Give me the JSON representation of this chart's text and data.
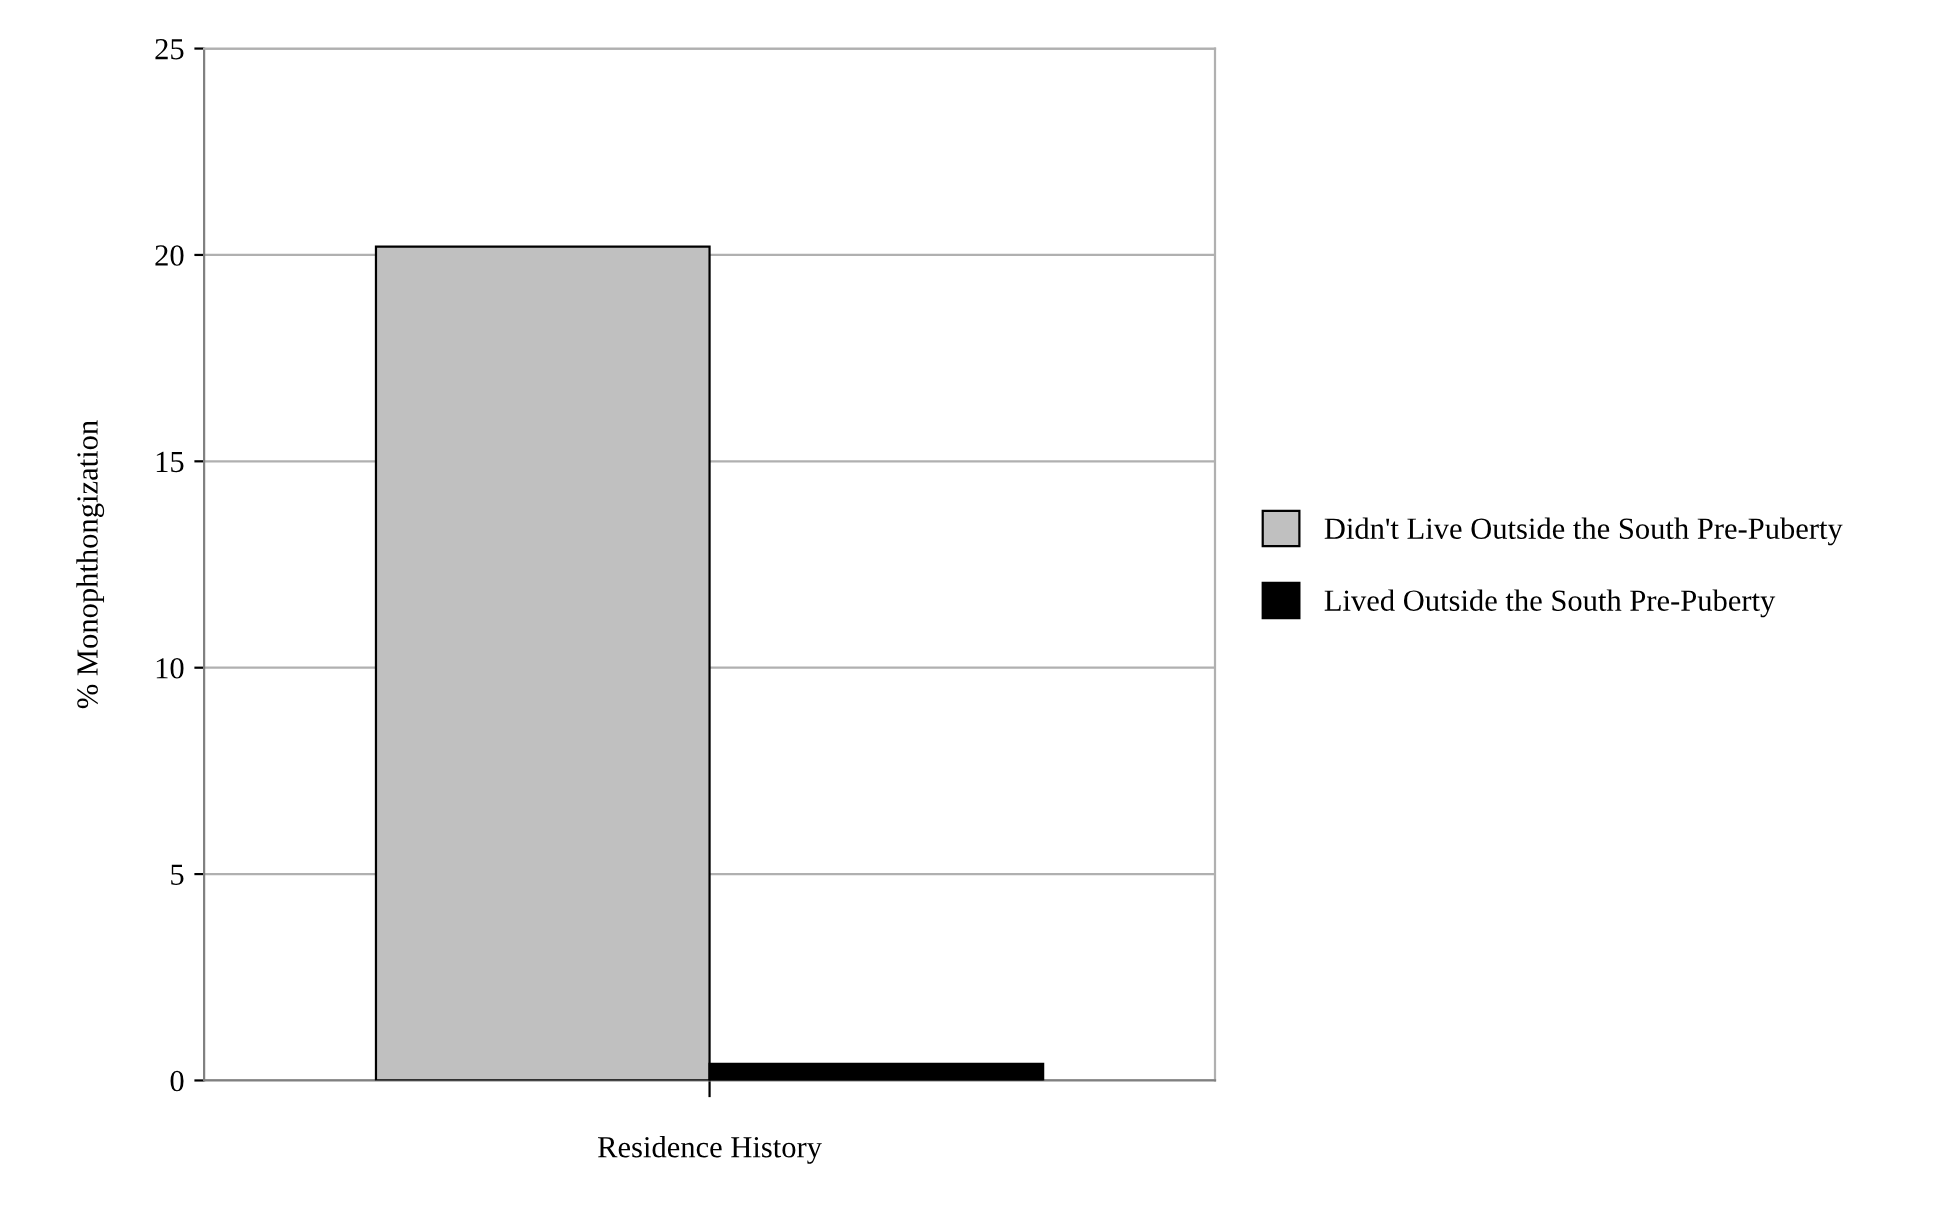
{
  "chart_data": {
    "type": "bar",
    "xlabel": "Residence History",
    "ylabel": "% Monophthongization",
    "categories": [
      null
    ],
    "series": [
      {
        "name": "Didn't Live Outside the South Pre-Puberty",
        "color": "#c0c0c0",
        "values": [
          20.2
        ]
      },
      {
        "name": "Lived Outside the South Pre-Puberty",
        "color": "#000000",
        "values": [
          0.4
        ]
      }
    ],
    "ylim": [
      0,
      25
    ],
    "yticks": [
      0,
      5,
      10,
      15,
      20,
      25
    ],
    "grid": "y",
    "legend": "right"
  }
}
